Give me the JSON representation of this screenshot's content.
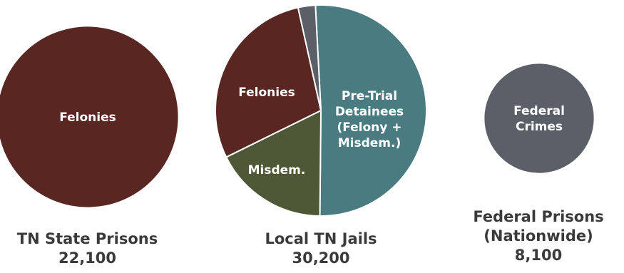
{
  "chart_data": [
    {
      "type": "pie",
      "title": "TN State Prisons",
      "total": 22100,
      "total_label": "22,100",
      "slices": [
        {
          "label": "Felonies",
          "value": 22100,
          "color": "#5a2621"
        }
      ]
    },
    {
      "type": "pie",
      "title": "Local TN Jails",
      "total": 30200,
      "total_label": "30,200",
      "slices": [
        {
          "label": "Pre-Trial Detainees (Felony + Misdem.)",
          "lines": [
            "Pre-Trial",
            "Detainees",
            "(Felony +",
            "Misdem.)"
          ],
          "value": 15400,
          "color": "#4a7b81"
        },
        {
          "label": "Misdem.",
          "lines": [
            "Misdem."
          ],
          "value": 5300,
          "color": "#4e5736"
        },
        {
          "label": "Felonies",
          "lines": [
            "Felonies"
          ],
          "value": 8700,
          "color": "#5a2621"
        },
        {
          "label": "",
          "lines": [],
          "value": 800,
          "color": "#5b6068"
        }
      ]
    },
    {
      "type": "pie",
      "title_lines": [
        "Federal Prisons",
        "(Nationwide)"
      ],
      "title": "Federal Prisons (Nationwide)",
      "total": 8100,
      "total_label": "8,100",
      "slices": [
        {
          "label": "Federal Crimes",
          "lines": [
            "Federal",
            "Crimes"
          ],
          "value": 8100,
          "color": "#5b6068"
        }
      ]
    }
  ]
}
